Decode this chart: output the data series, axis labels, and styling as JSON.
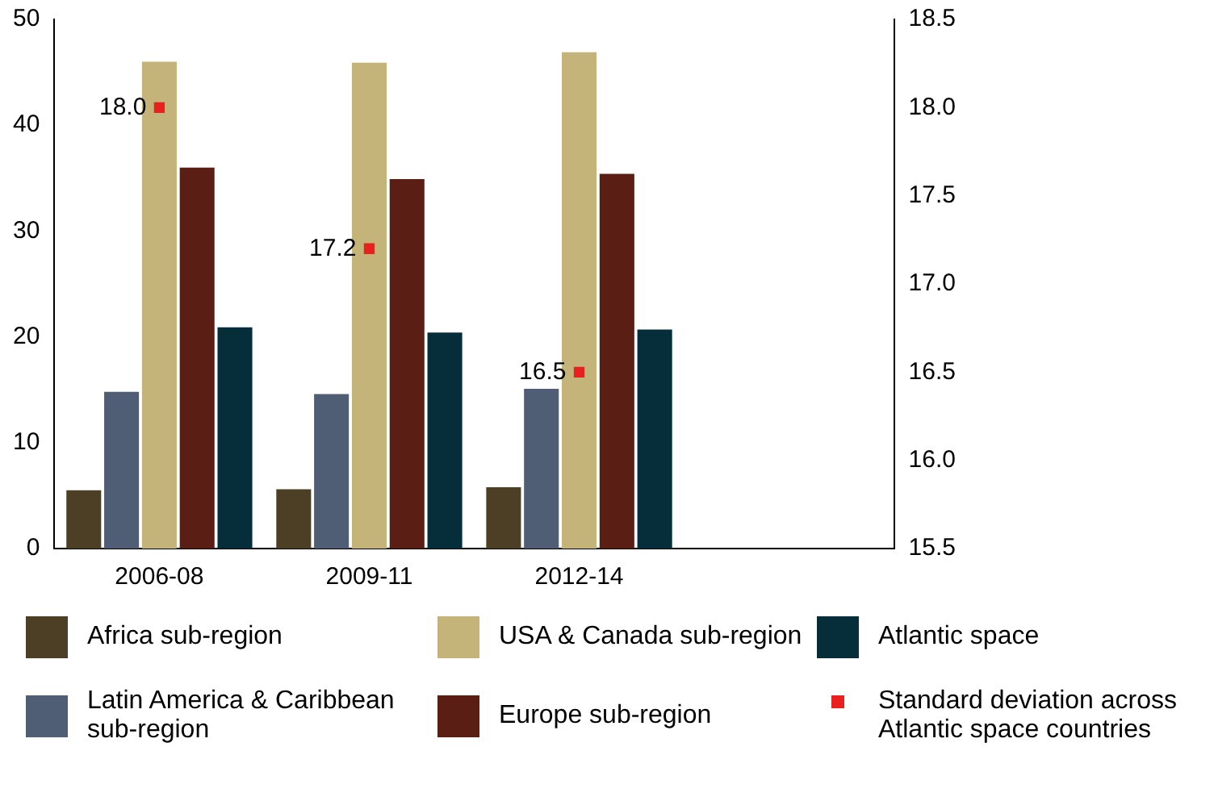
{
  "chart_data": {
    "type": "bar",
    "categories": [
      "2006-08",
      "2009-11",
      "2012-14",
      null
    ],
    "series": [
      {
        "name": "Africa sub-region",
        "color": "#4d3f25",
        "values": [
          5.5,
          5.6,
          5.8,
          null
        ]
      },
      {
        "name": "Latin America & Caribbean sub-region",
        "color": "#4f5d75",
        "values": [
          14.8,
          14.6,
          15.1,
          null
        ]
      },
      {
        "name": "USA & Canada sub-region",
        "color": "#c4b47a",
        "values": [
          46.0,
          45.9,
          46.9,
          null
        ]
      },
      {
        "name": "Europe sub-region",
        "color": "#5a1e14",
        "values": [
          36.0,
          34.9,
          35.4,
          null
        ]
      },
      {
        "name": "Atlantic space",
        "color": "#062d3a",
        "values": [
          20.9,
          20.4,
          20.7,
          null
        ]
      },
      {
        "name": "Standard deviation across Atlantic space countries",
        "type": "scatter",
        "axis": "y2",
        "marker": "square",
        "color": "#e8211e",
        "values": [
          18.0,
          17.2,
          16.5,
          null
        ],
        "value_labels": [
          "18.0",
          "17.2",
          "16.5",
          null
        ]
      }
    ],
    "ylim": [
      0,
      50
    ],
    "yticks": [
      0,
      10,
      20,
      30,
      40,
      50
    ],
    "y2lim": [
      15.5,
      18.5
    ],
    "y2ticks": [
      15.5,
      {
        "value": 16,
        "label": "16.0"
      },
      16.5,
      {
        "value": 17,
        "label": "17.0"
      },
      17.5,
      {
        "value": 18,
        "label": "18.0"
      },
      18.5
    ],
    "grid": false,
    "legend": "bottom"
  }
}
